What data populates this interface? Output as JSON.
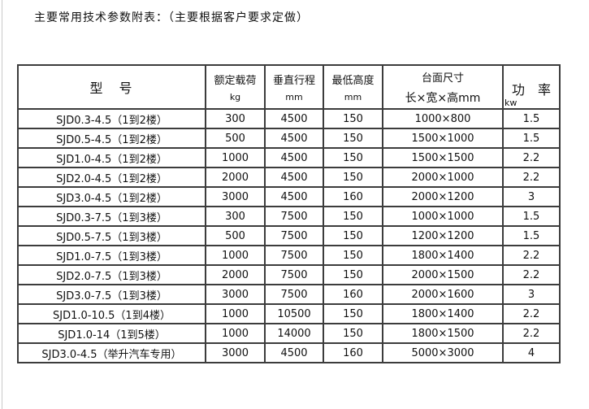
{
  "page": {
    "title": "主要常用技术参数附表：（主要根据客户要求定做）"
  },
  "colors": {
    "background": "#ffffff",
    "table_border": "#3c3c3c",
    "text": "#111111",
    "page_edge_line": "#c9c9c9"
  },
  "table": {
    "headers": {
      "model": "型　号",
      "load_label": "额定载荷",
      "load_unit": "kg",
      "travel_label": "垂直行程",
      "travel_unit": "mm",
      "min_height_label": "最低高度",
      "min_height_unit": "mm",
      "size_label": "台面尺寸",
      "size_sub": "长×宽×高mm",
      "power_label": "功　率",
      "power_unit": "kw"
    },
    "rows": [
      [
        "SJD0.3-4.5（1到2楼）",
        "300",
        "4500",
        "150",
        "1000×800",
        "1.5"
      ],
      [
        "SJD0.5-4.5（1到2楼）",
        "500",
        "4500",
        "150",
        "1500×1000",
        "1.5"
      ],
      [
        "SJD1.0-4.5（1到2楼）",
        "1000",
        "4500",
        "150",
        "1500×1500",
        "2.2"
      ],
      [
        "SJD2.0-4.5（1到2楼）",
        "2000",
        "4500",
        "150",
        "2000×1000",
        "2.2"
      ],
      [
        "SJD3.0-4.5（1到2楼）",
        "3000",
        "4500",
        "160",
        "2000×1200",
        "3"
      ],
      [
        "SJD0.3-7.5（1到3楼）",
        "300",
        "7500",
        "150",
        "1000×1000",
        "1.5"
      ],
      [
        "SJD0.5-7.5（1到3楼）",
        "500",
        "7500",
        "150",
        "1200×1200",
        "1.5"
      ],
      [
        "SJD1.0-7.5（1到3楼）",
        "1000",
        "7500",
        "150",
        "1800×1400",
        "2.2"
      ],
      [
        "SJD2.0-7.5（1到3楼）",
        "2000",
        "7500",
        "150",
        "2000×1500",
        "2.2"
      ],
      [
        "SJD3.0-7.5（1到3楼）",
        "3000",
        "7500",
        "160",
        "2000×1600",
        "3"
      ],
      [
        "SJD1.0-10.5（1到4楼）",
        "1000",
        "10500",
        "150",
        "1800×1400",
        "2.2"
      ],
      [
        "SJD1.0-14（1到5楼）",
        "1000",
        "14000",
        "150",
        "1800×1500",
        "2.2"
      ],
      [
        "SJD3.0-4.5（举升汽车专用）",
        "3000",
        "4500",
        "160",
        "5000×3000",
        "4"
      ]
    ]
  }
}
